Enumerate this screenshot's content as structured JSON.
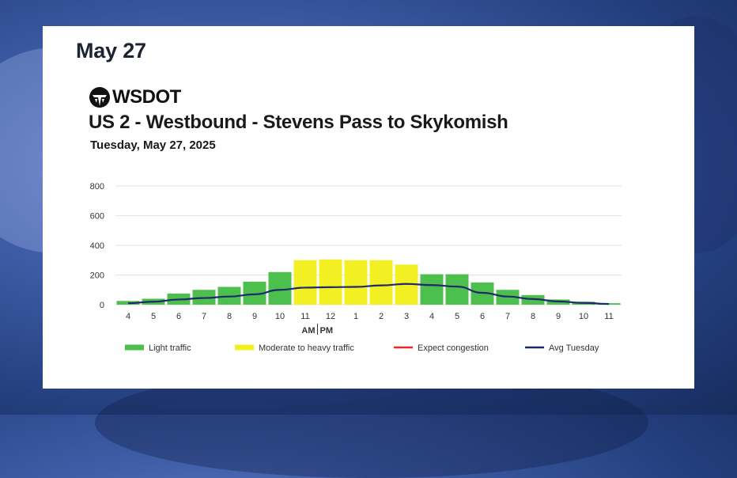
{
  "caption": "May 27",
  "brand": {
    "logo_text": "WSDOT",
    "logo_icon": "wsdot-logo-icon"
  },
  "chart_data": {
    "type": "bar",
    "title": "US 2 - Westbound - Stevens Pass to Skykomish",
    "subtitle": "Tuesday, May 27, 2025",
    "categories": [
      "4",
      "5",
      "6",
      "7",
      "8",
      "9",
      "10",
      "11",
      "12",
      "1",
      "2",
      "3",
      "4",
      "5",
      "6",
      "7",
      "8",
      "9",
      "10",
      "11"
    ],
    "values": [
      25,
      40,
      75,
      100,
      120,
      155,
      220,
      300,
      305,
      300,
      300,
      270,
      205,
      205,
      150,
      100,
      65,
      35,
      20,
      10
    ],
    "bar_class": [
      "light",
      "light",
      "light",
      "light",
      "light",
      "light",
      "light",
      "moderate",
      "moderate",
      "moderate",
      "moderate",
      "moderate",
      "light",
      "light",
      "light",
      "light",
      "light",
      "light",
      "light",
      "light"
    ],
    "avg_line": {
      "name": "Avg Tuesday",
      "values": [
        10,
        20,
        35,
        45,
        55,
        70,
        100,
        115,
        118,
        120,
        130,
        140,
        132,
        122,
        80,
        55,
        38,
        22,
        12,
        5
      ]
    },
    "ylim": [
      0,
      800
    ],
    "yticks": [
      "0",
      "200",
      "400",
      "600",
      "800"
    ],
    "ytick_values": [
      0,
      200,
      400,
      600,
      800
    ],
    "ampm_label": {
      "am": "AM",
      "pm": "PM"
    },
    "legend": [
      {
        "label": "Light traffic",
        "color": "#4dbf4d",
        "kind": "box"
      },
      {
        "label": "Moderate to heavy traffic",
        "color": "#f2ef22",
        "kind": "box"
      },
      {
        "label": "Expect congestion",
        "color": "#e8282b",
        "kind": "line"
      },
      {
        "label": "Avg Tuesday",
        "color": "#1d2a6b",
        "kind": "line"
      }
    ],
    "colors": {
      "light": "#4dbf4d",
      "moderate": "#f2ef22",
      "avg_line": "#1d2a6b",
      "grid": "#e3e3e3"
    },
    "grid": true,
    "legend_position": "bottom"
  }
}
